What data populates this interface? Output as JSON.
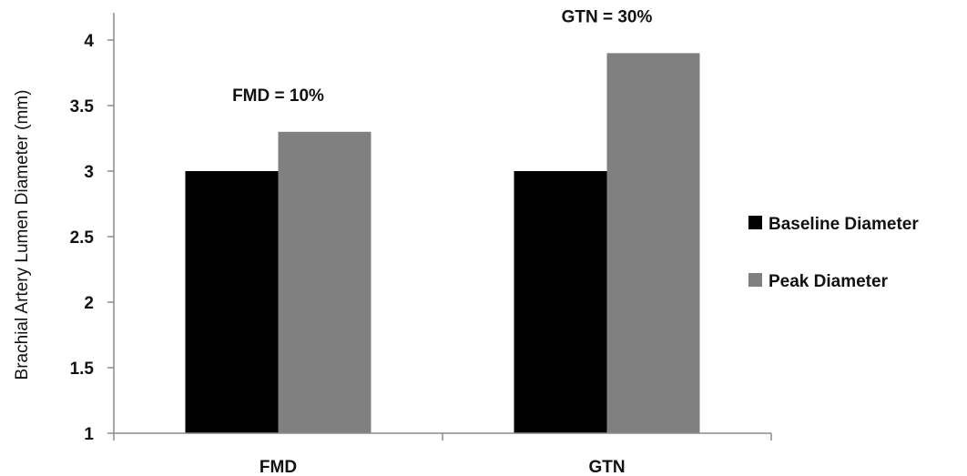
{
  "chart_data": {
    "type": "bar",
    "categories": [
      "FMD",
      "GTN"
    ],
    "series": [
      {
        "name": "Baseline Diameter",
        "values": [
          3.0,
          3.0
        ],
        "color": "#000000"
      },
      {
        "name": "Peak Diameter",
        "values": [
          3.3,
          3.9
        ],
        "color": "#808080"
      }
    ],
    "title": "",
    "xlabel": "",
    "ylabel": "Brachial Artery Lumen Diameter (mm)",
    "ylim": [
      1,
      4
    ],
    "yticks": [
      1,
      1.5,
      2,
      2.5,
      3,
      3.5,
      4
    ],
    "ytick_labels": [
      "1",
      "1.5",
      "2",
      "2.5",
      "3",
      "3.5",
      "4"
    ],
    "grid": false,
    "legend_position": "right",
    "annotations": [
      "FMD = 10%",
      "GTN = 30%"
    ]
  }
}
